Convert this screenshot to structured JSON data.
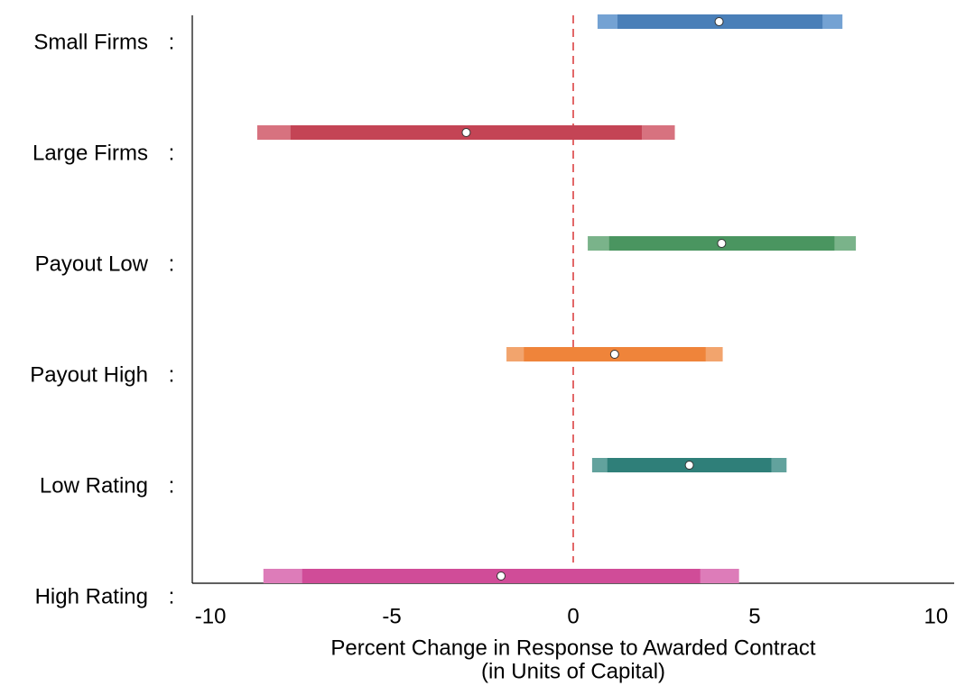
{
  "chart_data": {
    "type": "coefplot",
    "categories": [
      "Small Firms",
      "Large Firms",
      "Payout Low",
      "Payout High",
      "Low Rating",
      "High Rating"
    ],
    "label_separator": ":",
    "values": [
      4.02,
      -2.95,
      4.09,
      1.14,
      3.2,
      -1.99
    ],
    "inner_low": [
      1.22,
      -7.79,
      0.99,
      -1.36,
      0.94,
      -7.47
    ],
    "inner_high": [
      6.87,
      1.89,
      7.2,
      3.65,
      5.46,
      3.5
    ],
    "outer_low": [
      0.67,
      -8.71,
      0.4,
      -1.84,
      0.52,
      -8.54
    ],
    "outer_high": [
      7.42,
      2.8,
      7.79,
      4.12,
      5.88,
      4.57
    ],
    "colors": [
      "#4a7fb8",
      "#c44455",
      "#4a9560",
      "#ef843a",
      "#2f7f79",
      "#d04c98"
    ],
    "outer_colors": [
      "#74a2d3",
      "#d7727f",
      "#7ab38a",
      "#f2a46d",
      "#62a29d",
      "#dd7cb9"
    ],
    "xlim": [
      -10.5,
      10.5
    ],
    "xticks": [
      -10,
      -5,
      0,
      5,
      10
    ],
    "xlabel": [
      "Percent Change in Response to Awarded Contract",
      "(in Units of Capital)"
    ],
    "reference_line": 0,
    "reference_color": "#d62728"
  }
}
